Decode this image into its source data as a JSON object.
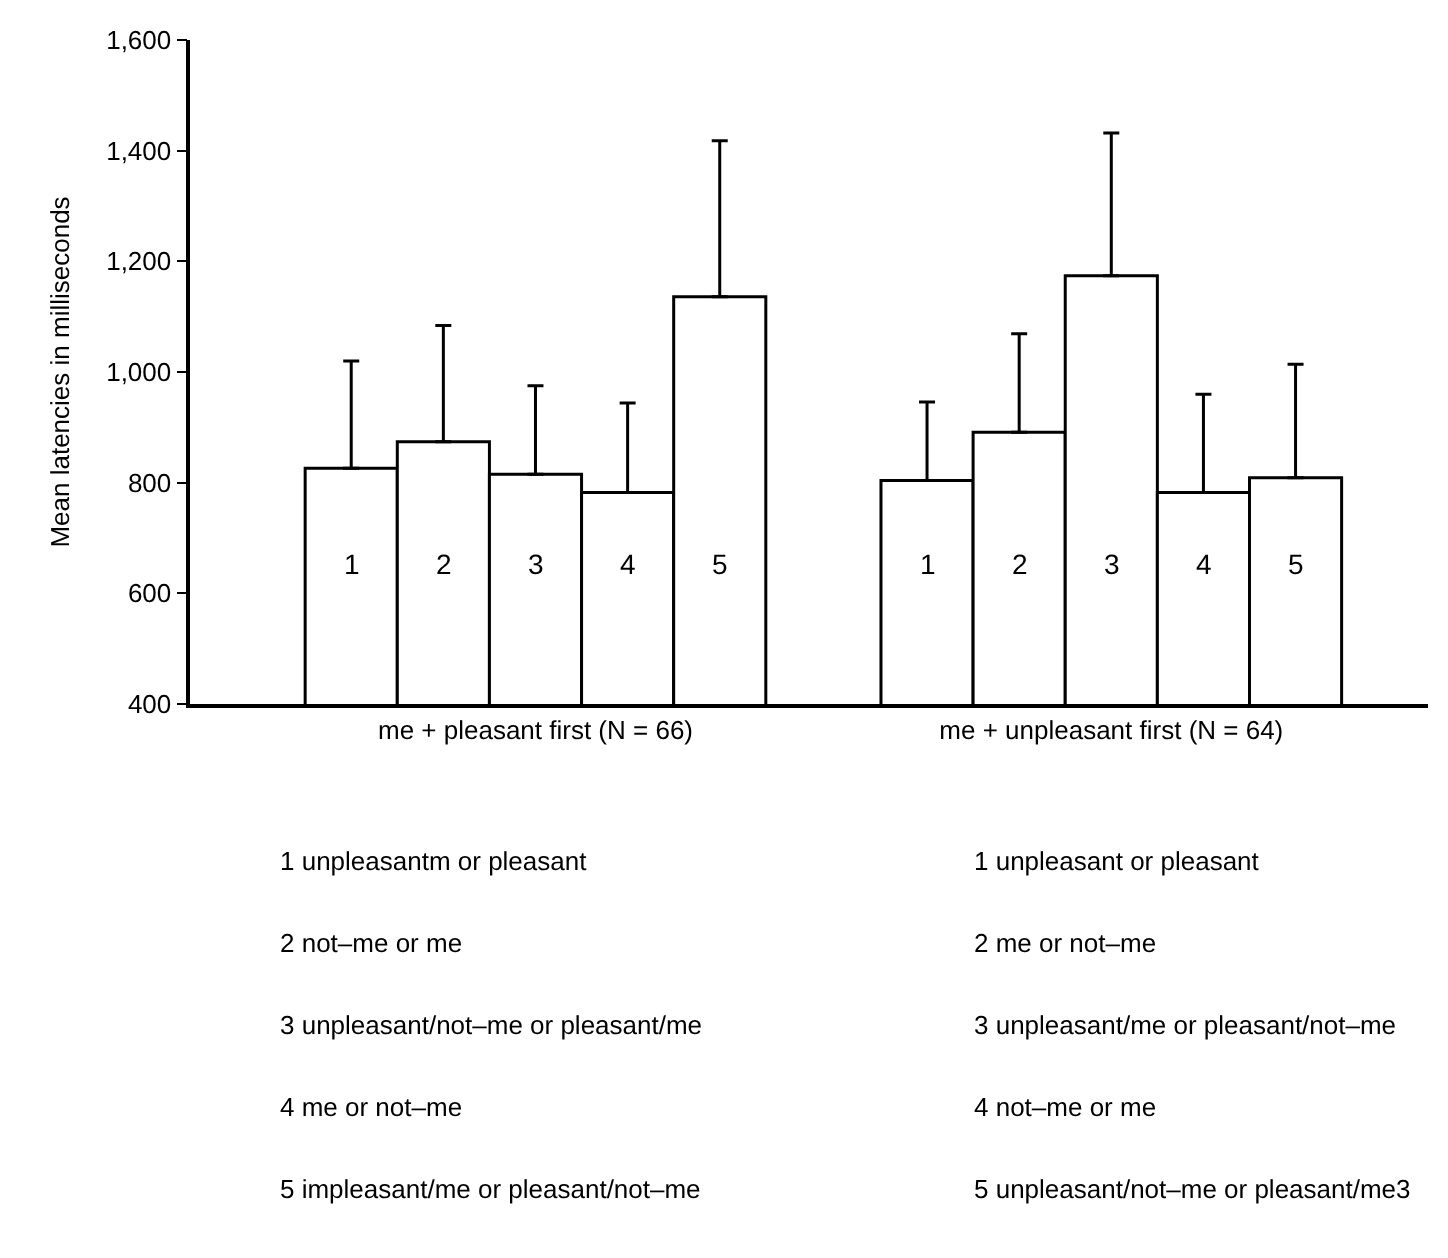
{
  "chart_data": {
    "type": "bar",
    "ylabel": "Mean latencies in milliseconds",
    "categories": [
      "me + pleasant first (N = 66)",
      "me + unpleasant first (N = 64)"
    ],
    "series": [
      {
        "name": "1",
        "color": "#ffffff",
        "values": [
          826,
          804
        ],
        "errors": [
          [
            826,
            1020
          ],
          [
            804,
            946
          ]
        ]
      },
      {
        "name": "2",
        "color": "#ffffff",
        "values": [
          874,
          891
        ],
        "errors": [
          [
            874,
            1084
          ],
          [
            891,
            1069
          ]
        ]
      },
      {
        "name": "3",
        "color": "#ffffff",
        "values": [
          815,
          1174
        ],
        "errors": [
          [
            815,
            975
          ],
          [
            1174,
            1432
          ]
        ]
      },
      {
        "name": "4",
        "color": "#ffffff",
        "values": [
          782,
          782
        ],
        "errors": [
          [
            782,
            944
          ],
          [
            782,
            960
          ]
        ]
      },
      {
        "name": "5",
        "color": "#ffffff",
        "values": [
          1136,
          809
        ],
        "errors": [
          [
            1136,
            1418
          ],
          [
            809,
            1014
          ]
        ]
      }
    ],
    "ylim": [
      400,
      1600
    ],
    "yticks": [
      400,
      600,
      800,
      {
        "value": 1000,
        "label": "1,000"
      },
      {
        "value": 1200,
        "label": "1,200"
      },
      {
        "value": 1400,
        "label": "1,400"
      },
      {
        "value": 1600,
        "label": "1,600"
      }
    ],
    "legend": false,
    "annotations": [
      "1 unpleasantm or pleasant",
      "2 not–me or me",
      "3 unpleasant/not–me or pleasant/me",
      "4 me or not–me",
      "5 impleasant/me or pleasant/not–me",
      "1 unpleasant or pleasant",
      "2 me or not–me",
      "3 unpleasant/me or pleasant/not–me",
      "4 not–me or me",
      "5 unpleasant/not–me or pleasant/me3"
    ]
  }
}
